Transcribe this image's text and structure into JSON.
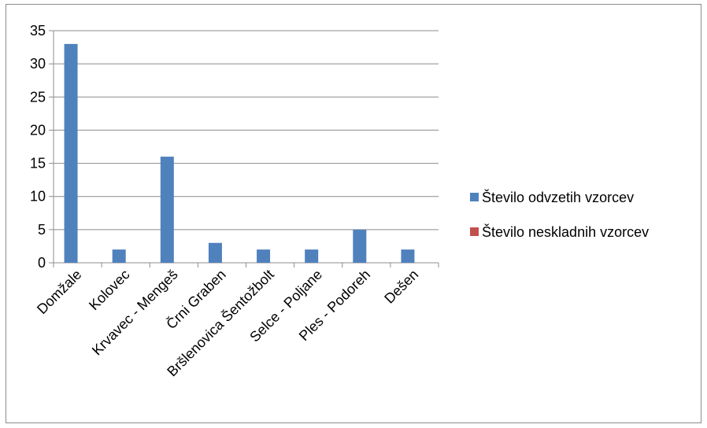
{
  "chart_data": {
    "type": "bar",
    "categories": [
      "Domžale",
      "Kolovec",
      "Krvavec - Mengeš",
      "Črni Graben",
      "Bršlenovica Šentožbolt",
      "Selce - Poljane",
      "Ples - Podoreh",
      "Dešen"
    ],
    "series": [
      {
        "name": "Število odvzetih vzorcev",
        "values": [
          33,
          2,
          16,
          3,
          2,
          2,
          5,
          2
        ],
        "color": "#4f81bd"
      },
      {
        "name": "Število neskladnih vzorcev",
        "values": [
          0,
          0,
          0,
          0,
          0,
          0,
          0,
          0
        ],
        "color": "#c0504d"
      }
    ],
    "ylim": [
      0,
      35
    ],
    "yticks": [
      0,
      5,
      10,
      15,
      20,
      25,
      30,
      35
    ],
    "grid": true,
    "legend_position": "right",
    "title": "",
    "xlabel": "",
    "ylabel": ""
  }
}
